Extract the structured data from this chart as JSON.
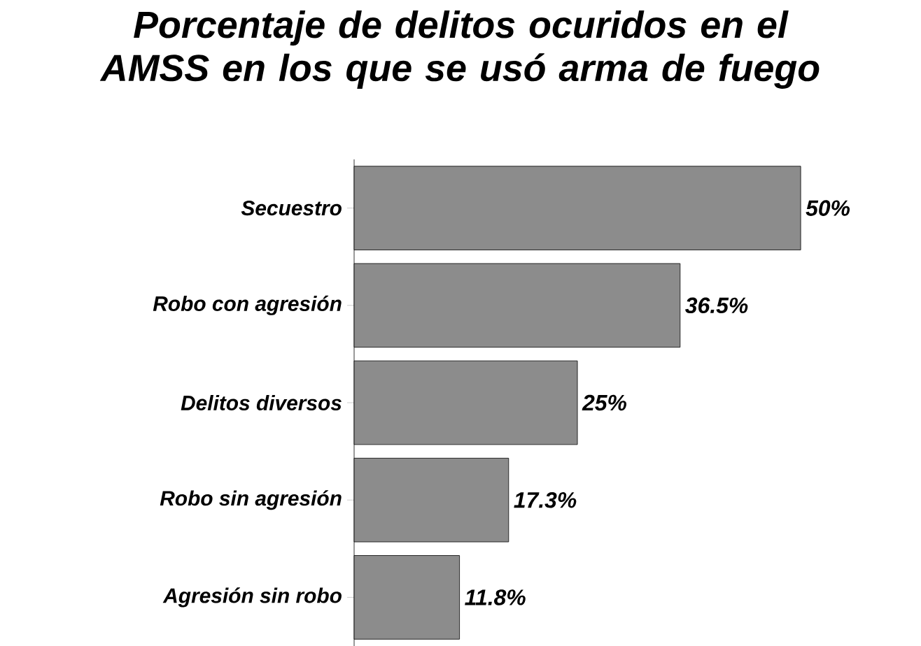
{
  "chart_data": {
    "type": "bar",
    "orientation": "horizontal",
    "title": "Porcentaje de delitos ocuridos en el AMSS en los que se usó arma de fuego",
    "categories": [
      "Secuestro",
      "Robo con agresión",
      "Delitos diversos",
      "Robo sin agresión",
      "Agresión sin robo"
    ],
    "values": [
      50,
      36.5,
      25,
      17.3,
      11.8
    ],
    "value_labels": [
      "50%",
      "36.5%",
      "25%",
      "17.3%",
      "11.8%"
    ],
    "color": "#8c8c8c"
  }
}
